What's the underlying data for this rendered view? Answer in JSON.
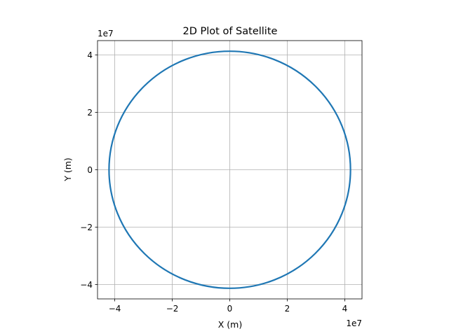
{
  "chart_data": {
    "type": "line",
    "title": "2D Plot of Satellite",
    "xlabel": "X (m)",
    "ylabel": "Y (m)",
    "x_offset_text": "1e7",
    "y_offset_text": "1e7",
    "xlim": [
      -4.6,
      4.6
    ],
    "ylim": [
      -4.5,
      4.5
    ],
    "xticks": [
      -4,
      -2,
      0,
      2,
      4
    ],
    "yticks": [
      -4,
      -2,
      0,
      2,
      4
    ],
    "xtick_labels": [
      "−4",
      "−2",
      "0",
      "2",
      "4"
    ],
    "ytick_labels": [
      "−4",
      "−2",
      "0",
      "2",
      "4"
    ],
    "grid": true,
    "aspect": "equal",
    "series": [
      {
        "color": "#1f77b4",
        "shape": "circle",
        "center": [
          0,
          0
        ],
        "radius_x": 4.2,
        "radius_y": 4.13
      }
    ]
  }
}
